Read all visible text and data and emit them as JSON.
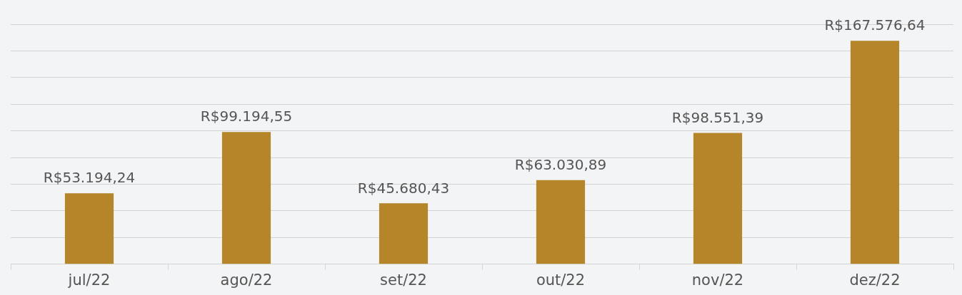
{
  "chart_data": {
    "type": "bar",
    "categories": [
      "jul/22",
      "ago/22",
      "set/22",
      "out/22",
      "nov/22",
      "dez/22"
    ],
    "values": [
      53194.24,
      99194.55,
      45680.43,
      63030.89,
      98551.39,
      167576.64
    ],
    "value_labels": [
      "R$53.194,24",
      "R$99.194,55",
      "R$45.680,43",
      "R$63.030,89",
      "R$98.551,39",
      "R$167.576,64"
    ],
    "color": "#b5852a",
    "grid": "y",
    "tick_labels": "x",
    "legend": false
  }
}
